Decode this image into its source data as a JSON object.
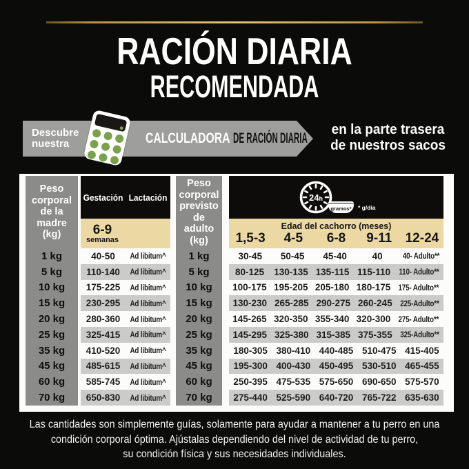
{
  "title": {
    "line1": "RACIÓN DIARIA",
    "line2": "RECOMENDADA"
  },
  "banner": {
    "discover_line1": "Descubre",
    "discover_line2": "nuestra",
    "calculator_highlight": "CALCULADORA",
    "calculator_rest": "DE RACIÓN DIARIA",
    "location_line1": "en la parte trasera",
    "location_line2": "de nuestros sacos"
  },
  "mother_table": {
    "weight_header": "Peso corporal de la madre (kg)",
    "columns": [
      "Gestación",
      "Lactación"
    ],
    "gestation_weeks_value": "6-9",
    "gestation_weeks_unit": "semanas",
    "rows": [
      {
        "weight": "1 kg",
        "gestation": "40-50",
        "lactation": "Ad libitum^"
      },
      {
        "weight": "5 kg",
        "gestation": "110-140",
        "lactation": "Ad libitum^"
      },
      {
        "weight": "10 kg",
        "gestation": "175-225",
        "lactation": "Ad libitum^"
      },
      {
        "weight": "15 kg",
        "gestation": "230-295",
        "lactation": "Ad libitum^"
      },
      {
        "weight": "20 kg",
        "gestation": "280-360",
        "lactation": "Ad libitum^"
      },
      {
        "weight": "25 kg",
        "gestation": "325-415",
        "lactation": "Ad libitum^"
      },
      {
        "weight": "35 kg",
        "gestation": "410-520",
        "lactation": "Ad libitum^"
      },
      {
        "weight": "45 kg",
        "gestation": "485-615",
        "lactation": "Ad libitum^"
      },
      {
        "weight": "60 kg",
        "gestation": "585-745",
        "lactation": "Ad libitum^"
      },
      {
        "weight": "70 kg",
        "gestation": "650-830",
        "lactation": "Ad libitum^"
      }
    ]
  },
  "puppy_table": {
    "weight_header": "Peso corporal previsto de adulto (kg)",
    "clock_value": "24",
    "clock_unit": "h",
    "bowl_label": "gramos*",
    "unit_note": "* g/día",
    "age_header": "Edad del cachorro (meses)",
    "age_columns": [
      "1,5-3",
      "4-5",
      "6-8",
      "9-11",
      "12-24"
    ],
    "rows": [
      {
        "weight": "1 kg",
        "values": [
          "30-45",
          "50-45",
          "45-40",
          "40",
          "40- Adulto**"
        ]
      },
      {
        "weight": "5 kg",
        "values": [
          "80-125",
          "130-135",
          "135-115",
          "115-110",
          "110- Adulto**"
        ]
      },
      {
        "weight": "10 kg",
        "values": [
          "100-175",
          "195-205",
          "205-180",
          "180-175",
          "175- Adulto**"
        ]
      },
      {
        "weight": "15 kg",
        "values": [
          "130-230",
          "265-285",
          "290-275",
          "260-245",
          "225-Adulto**"
        ]
      },
      {
        "weight": "20 kg",
        "values": [
          "145-265",
          "320-350",
          "355-340",
          "320-300",
          "275- Adulto**"
        ]
      },
      {
        "weight": "25 kg",
        "values": [
          "145-295",
          "325-380",
          "315-385",
          "375-355",
          "325-Adulto**"
        ]
      },
      {
        "weight": "35 kg",
        "values": [
          "180-305",
          "380-410",
          "440-485",
          "510-475",
          "415-405"
        ]
      },
      {
        "weight": "45 kg",
        "values": [
          "195-300",
          "400-430",
          "450-495",
          "530-510",
          "465-455"
        ]
      },
      {
        "weight": "60 kg",
        "values": [
          "250-395",
          "475-535",
          "575-650",
          "690-650",
          "575-570"
        ]
      },
      {
        "weight": "70 kg",
        "values": [
          "275-440",
          "525-590",
          "640-720",
          "765-722",
          "635-630"
        ]
      }
    ]
  },
  "footer": {
    "line1": "Las cantidades son simplemente guías, solamente para ayudar a mantener a tu perro en una",
    "line2": "condición corporal óptima. Ajústalas dependiendo del nivel de actividad de tu perro,",
    "line3": "su condición física y sus necesidades individuales."
  },
  "colors": {
    "background": "#0b0b0a",
    "gold": "#c9a94f",
    "banner_gray": "#9e9e9c",
    "calculator_green": "#7aa24c",
    "tan_band": "#ecd8a2",
    "row_stripe": "#cbcbc9",
    "weight_column_gray": "#8b8b8a"
  }
}
